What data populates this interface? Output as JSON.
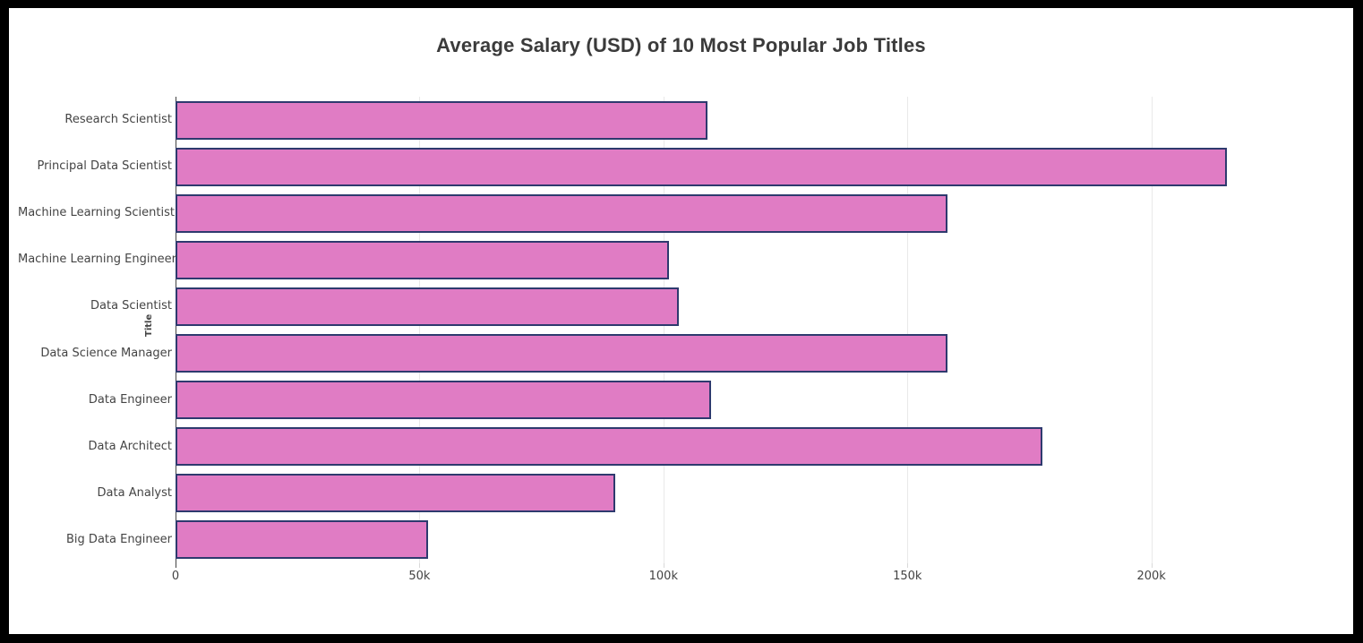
{
  "chart_data": {
    "type": "bar",
    "orientation": "horizontal",
    "title": "Average Salary (USD) of 10 Most Popular Job Titles",
    "xlabel": "",
    "ylabel": "Title",
    "categories_top_to_bottom": [
      "Research Scientist",
      "Principal Data Scientist",
      "Machine Learning Scientist",
      "Machine Learning Engineer",
      "Data Scientist",
      "Data Science Manager",
      "Data Engineer",
      "Data Architect",
      "Data Analyst",
      "Big Data Engineer"
    ],
    "values": [
      109000,
      215500,
      158300,
      101100,
      103200,
      158200,
      109700,
      177700,
      90100,
      51800
    ],
    "xlim": [
      0,
      232000
    ],
    "xticks": {
      "values": [
        0,
        50000,
        100000,
        150000,
        200000
      ],
      "labels": [
        "0",
        "50k",
        "100k",
        "150k",
        "200k"
      ]
    },
    "grid": "vertical-only",
    "legend": "none",
    "colors": {
      "bar_fill": "#e07cc4",
      "bar_border": "#2e3a6e",
      "gridline": "#e9e9e9",
      "zeroline": "#444444",
      "tick_mark": "#d9d9d9",
      "title_text": "#3b3b3b",
      "tick_text": "#444444",
      "background": "#ffffff",
      "frame": "#000000"
    }
  }
}
